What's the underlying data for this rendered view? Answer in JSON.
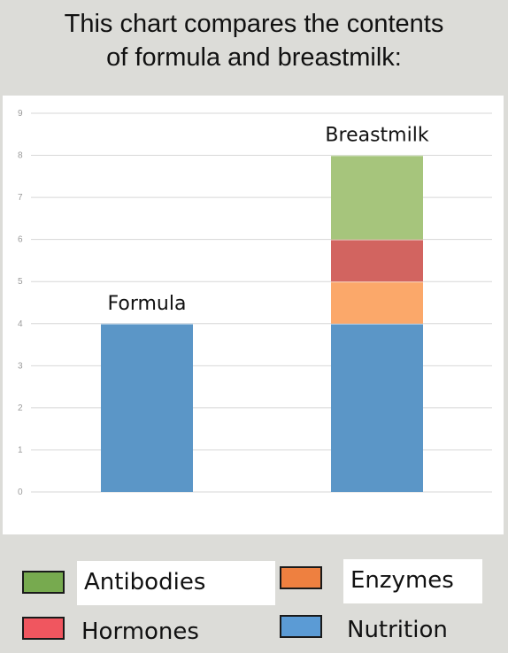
{
  "title": {
    "line1": "This chart compares the contents",
    "line2": "of formula and breastmilk:"
  },
  "colors": {
    "nutrition": "#5b96c7",
    "enzymes": "#fba86a",
    "hormones": "#d26460",
    "antibodies": "#a6c57c"
  },
  "chart_data": {
    "type": "bar",
    "stacked": true,
    "categories": [
      "Formula",
      "Breastmilk"
    ],
    "series": [
      {
        "name": "Nutrition",
        "values": [
          4,
          4
        ],
        "color": "#5b96c7"
      },
      {
        "name": "Enzymes",
        "values": [
          0,
          1
        ],
        "color": "#fba86a"
      },
      {
        "name": "Hormones",
        "values": [
          0,
          1
        ],
        "color": "#d26460"
      },
      {
        "name": "Antibodies",
        "values": [
          0,
          2
        ],
        "color": "#a6c57c"
      }
    ],
    "bar_labels": [
      "Formula",
      "Breastmilk"
    ],
    "yticks": [
      "0",
      "1",
      "2",
      "3",
      "4",
      "5",
      "6",
      "7",
      "8",
      "9"
    ],
    "ylim": [
      0,
      9
    ],
    "grid": true,
    "legend_position": "bottom"
  },
  "legend": [
    {
      "label": "Antibodies",
      "color": "#77aa4f"
    },
    {
      "label": "Enzymes",
      "color": "#ee8040"
    },
    {
      "label": "Hormones",
      "color": "#f0565f"
    },
    {
      "label": "Nutrition",
      "color": "#5b9bd5"
    }
  ]
}
